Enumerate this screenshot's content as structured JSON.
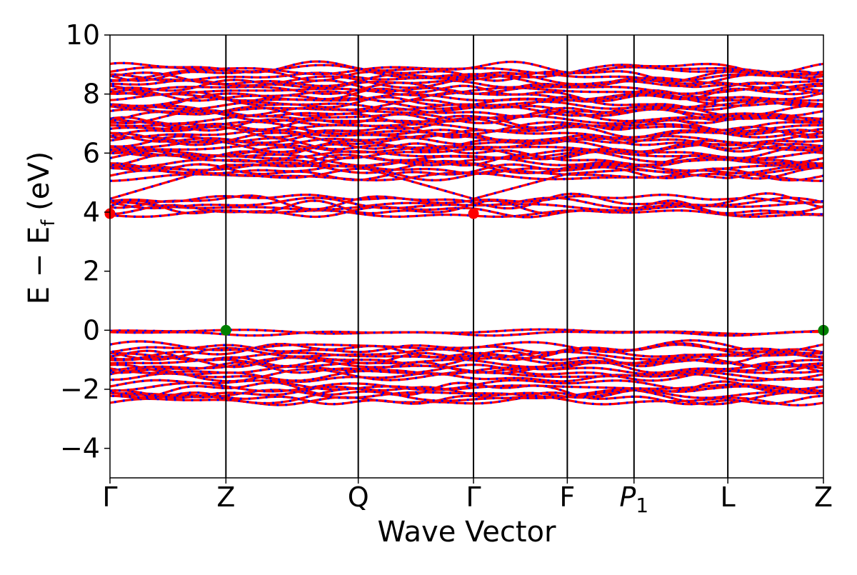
{
  "chart_data": {
    "type": "line",
    "title": "",
    "xlabel": "Wave Vector",
    "ylabel_main": "E − E",
    "ylabel_sub": "f",
    "ylabel_unit": " (eV)",
    "ylim": [
      -5,
      10
    ],
    "y_ticks": [
      -4,
      -2,
      0,
      2,
      4,
      6,
      8,
      10
    ],
    "y_tick_labels": [
      "−4",
      "−2",
      "0",
      "2",
      "4",
      "6",
      "8",
      "10"
    ],
    "grid": false,
    "k_points": [
      {
        "label": "Γ",
        "x": 0.0,
        "italic": false,
        "sub": ""
      },
      {
        "label": "Z",
        "x": 0.1625,
        "italic": false,
        "sub": ""
      },
      {
        "label": "Q",
        "x": 0.348,
        "italic": false,
        "sub": ""
      },
      {
        "label": "Γ",
        "x": 0.5095,
        "italic": false,
        "sub": ""
      },
      {
        "label": "F",
        "x": 0.641,
        "italic": false,
        "sub": ""
      },
      {
        "label": "P",
        "x": 0.7345,
        "italic": true,
        "sub": "1"
      },
      {
        "label": "L",
        "x": 0.866,
        "italic": false,
        "sub": ""
      },
      {
        "label": "Z",
        "x": 1.0,
        "italic": false,
        "sub": ""
      }
    ],
    "series_colors": {
      "band_primary": "#ff0000",
      "band_secondary": "#0000ff"
    },
    "band_groups": [
      {
        "role": "valence-top",
        "energies": [
          -0.05,
          -0.1
        ]
      },
      {
        "role": "valence-manifold",
        "energy_range": [
          -1.6,
          -0.55
        ]
      },
      {
        "role": "valence-deep",
        "energy_range": [
          -2.4,
          -1.85
        ]
      },
      {
        "role": "conduction-low",
        "energy_range": [
          3.95,
          4.45
        ]
      },
      {
        "role": "conduction-high",
        "energy_range": [
          5.2,
          8.9
        ]
      }
    ],
    "markers": [
      {
        "kind": "cbm",
        "x": 0.0,
        "y": 3.95,
        "color": "#ff0000"
      },
      {
        "kind": "cbm",
        "x": 0.5095,
        "y": 3.95,
        "color": "#ff0000"
      },
      {
        "kind": "vbm",
        "x": 0.1625,
        "y": 0.0,
        "color": "#008000"
      },
      {
        "kind": "vbm",
        "x": 1.0,
        "y": 0.0,
        "color": "#008000"
      }
    ]
  }
}
